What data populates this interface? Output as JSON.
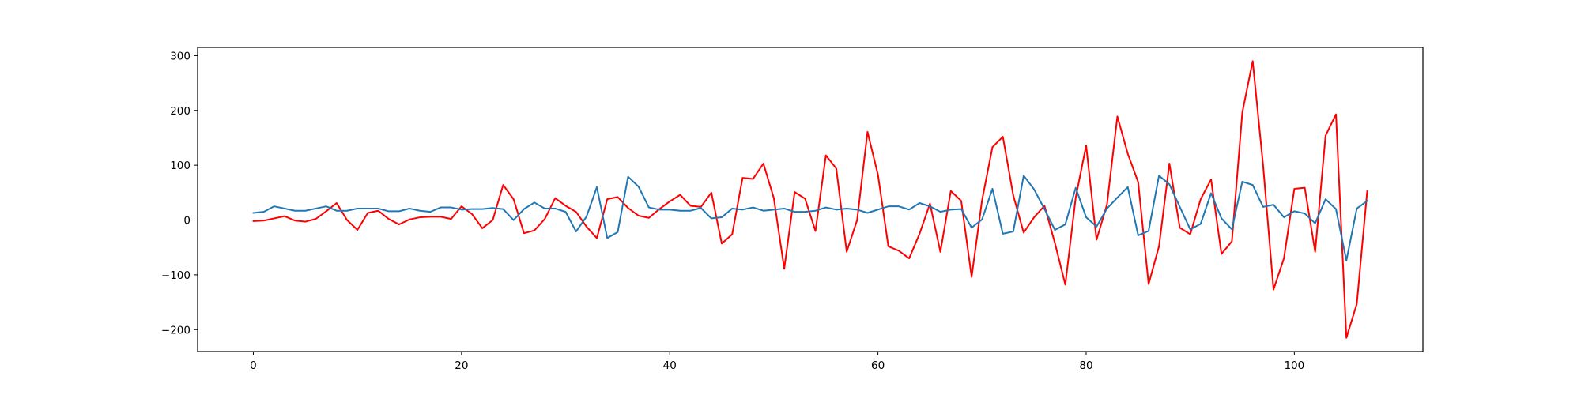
{
  "chart_data": {
    "type": "line",
    "title": "",
    "xlabel": "",
    "ylabel": "",
    "xlim": [
      -5.35,
      112.35
    ],
    "ylim": [
      -240,
      315
    ],
    "x_ticks": [
      0,
      20,
      40,
      60,
      80,
      100
    ],
    "x_tick_labels": [
      "0",
      "20",
      "40",
      "60",
      "80",
      "100"
    ],
    "y_ticks": [
      -200,
      -100,
      0,
      100,
      200,
      300
    ],
    "y_tick_labels": [
      "−200",
      "−100",
      "0",
      "100",
      "200",
      "300"
    ],
    "grid": false,
    "legend": "none",
    "series": [
      {
        "color": "#ff0000",
        "values": [
          -2,
          -1,
          3,
          7,
          -1,
          -3,
          2,
          16,
          31,
          0,
          -18,
          13,
          17,
          2,
          -8,
          1,
          5,
          6,
          6,
          2,
          25,
          11,
          -15,
          0,
          64,
          38,
          -24,
          -19,
          2,
          40,
          26,
          15,
          -12,
          -33,
          38,
          42,
          22,
          8,
          4,
          20,
          34,
          46,
          26,
          24,
          50,
          -43,
          -26,
          77,
          75,
          103,
          40,
          -89,
          51,
          39,
          -20,
          118,
          94,
          -58,
          0,
          161,
          83,
          -48,
          -56,
          -70,
          -25,
          30,
          -58,
          53,
          35,
          -104,
          36,
          133,
          152,
          45,
          -23,
          5,
          26,
          -42,
          -118,
          41,
          136,
          -36,
          28,
          189,
          121,
          69,
          -117,
          -48,
          103,
          -14,
          -26,
          38,
          74,
          -62,
          -39,
          196,
          290,
          100,
          -127,
          -70,
          57,
          59,
          -58,
          154,
          193,
          -215,
          -153,
          53
        ]
      },
      {
        "color": "#1f77b4",
        "values": [
          13,
          15,
          25,
          21,
          17,
          17,
          21,
          25,
          17,
          17,
          21,
          21,
          21,
          16,
          16,
          21,
          17,
          15,
          23,
          23,
          19,
          20,
          20,
          22,
          20,
          0,
          20,
          32,
          21,
          21,
          15,
          -21,
          6,
          60,
          -33,
          -22,
          79,
          61,
          23,
          19,
          19,
          17,
          17,
          22,
          3,
          5,
          21,
          19,
          23,
          17,
          19,
          21,
          15,
          15,
          17,
          23,
          19,
          21,
          19,
          13,
          19,
          25,
          25,
          19,
          31,
          25,
          15,
          19,
          20,
          -14,
          1,
          57,
          -25,
          -21,
          81,
          56,
          20,
          -18,
          -8,
          59,
          5,
          -12,
          21,
          41,
          60,
          -28,
          -20,
          81,
          65,
          24,
          -17,
          -7,
          49,
          3,
          -17,
          70,
          64,
          24,
          28,
          5,
          16,
          12,
          -6,
          38,
          20,
          -74,
          21,
          35
        ]
      }
    ]
  }
}
